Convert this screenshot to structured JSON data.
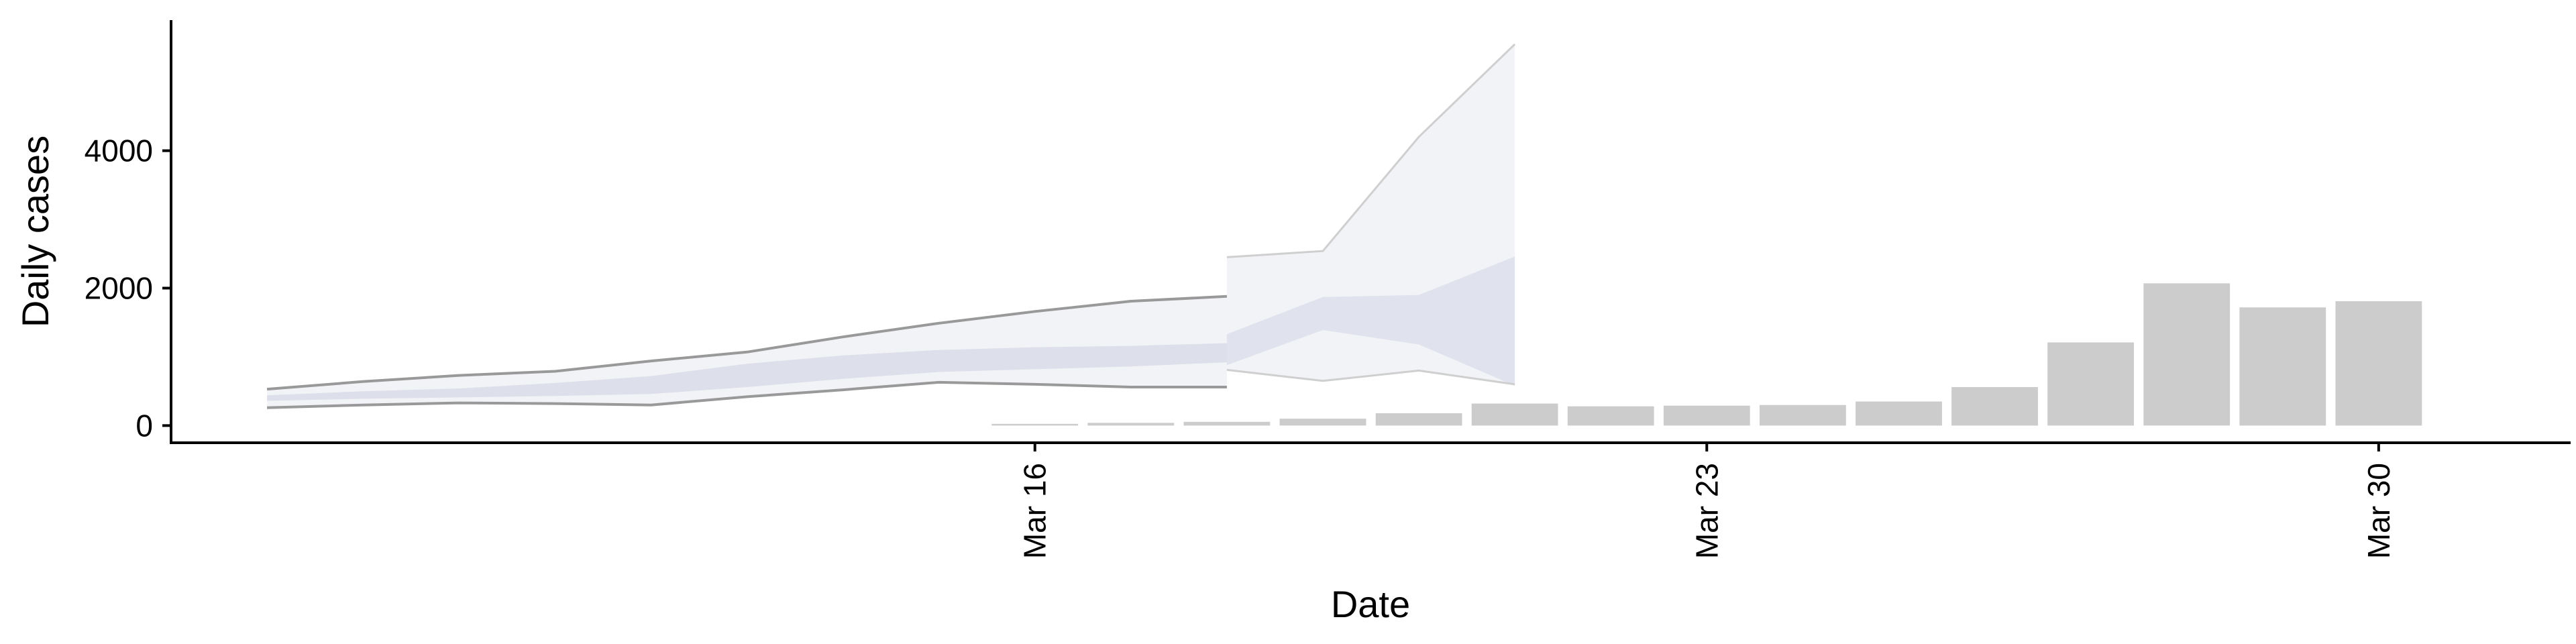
{
  "chart_data": {
    "type": "bar",
    "xlabel": "Date",
    "ylabel": "Daily cases",
    "ylim": [
      -250,
      5900
    ],
    "xlim": [
      "2020-03-07",
      "2020-04-01"
    ],
    "y_ticks": [
      0,
      2000,
      4000
    ],
    "x_ticks": [
      {
        "date": "2020-03-16",
        "label": "Mar 16"
      },
      {
        "date": "2020-03-23",
        "label": "Mar 23"
      },
      {
        "date": "2020-03-30",
        "label": "Mar 30"
      }
    ],
    "bars": {
      "dates": [
        "2020-03-16",
        "2020-03-17",
        "2020-03-18",
        "2020-03-19",
        "2020-03-20",
        "2020-03-21",
        "2020-03-22",
        "2020-03-23",
        "2020-03-24",
        "2020-03-25",
        "2020-03-26",
        "2020-03-27",
        "2020-03-28",
        "2020-03-29",
        "2020-03-30"
      ],
      "values": [
        25,
        40,
        55,
        100,
        180,
        320,
        280,
        290,
        300,
        350,
        560,
        1210,
        2070,
        1720,
        1810
      ],
      "color": "#cccccc"
    },
    "forecast": {
      "dates": [
        "2020-03-08",
        "2020-03-09",
        "2020-03-10",
        "2020-03-11",
        "2020-03-12",
        "2020-03-13",
        "2020-03-14",
        "2020-03-15",
        "2020-03-16",
        "2020-03-17",
        "2020-03-18",
        "2020-03-19",
        "2020-03-20",
        "2020-03-21"
      ],
      "outer_upper": [
        530,
        640,
        730,
        790,
        940,
        1070,
        1290,
        1490,
        1660,
        1810,
        1880,
        1940,
        2200,
        2450
      ],
      "outer_lower": [
        260,
        300,
        330,
        320,
        300,
        420,
        520,
        630,
        600,
        560,
        560,
        560,
        690,
        810
      ],
      "inner_upper": [
        440,
        500,
        540,
        620,
        720,
        900,
        1020,
        1100,
        1140,
        1160,
        1200,
        1220,
        1260,
        1330
      ],
      "inner_lower": [
        360,
        390,
        410,
        430,
        460,
        560,
        680,
        780,
        820,
        860,
        920,
        950,
        930,
        880
      ],
      "outer_upper_tail": {
        "dates": [
          "2020-03-18",
          "2020-03-19",
          "2020-03-20",
          "2020-03-21"
        ],
        "values": [
          2450,
          2540,
          4200,
          5550
        ]
      },
      "outer_lower_tail": {
        "dates": [
          "2020-03-18",
          "2020-03-19",
          "2020-03-20",
          "2020-03-21"
        ],
        "values": [
          810,
          650,
          800,
          600
        ]
      },
      "inner_upper_tail": {
        "dates": [
          "2020-03-18",
          "2020-03-19",
          "2020-03-20",
          "2020-03-21"
        ],
        "values": [
          1330,
          1870,
          1900,
          2460
        ]
      },
      "inner_lower_tail": {
        "dates": [
          "2020-03-18",
          "2020-03-19",
          "2020-03-20",
          "2020-03-21"
        ],
        "values": [
          880,
          1390,
          1180,
          580
        ]
      },
      "inner_color": "#d9dbe8",
      "outer_color": "#eceef4",
      "line_color": "#999999"
    }
  }
}
